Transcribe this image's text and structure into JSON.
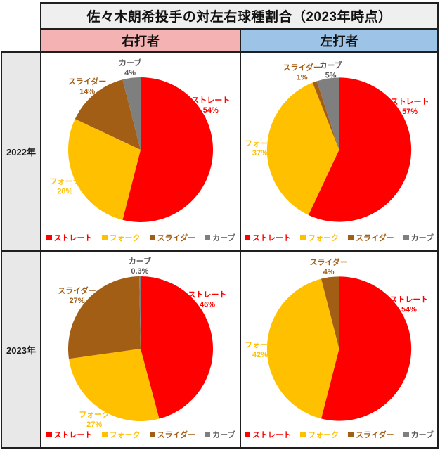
{
  "title": "佐々木朗希投手の対左右球種割合（2023年時点）",
  "col_headers": {
    "right": "右打者",
    "left": "左打者"
  },
  "row_headers": {
    "r2022": "2022年",
    "r2023": "2023年"
  },
  "colors": {
    "straight": "#ff0000",
    "fork": "#ffc000",
    "slider": "#a35e15",
    "curve": "#7f7f7f",
    "curve_label_text": "#595959",
    "header_right_bg": "#f4b2b2",
    "header_left_bg": "#9dc3e6",
    "title_bg": "#f0efef",
    "row_label_bg": "#e9e8e8",
    "grid_border": "#1f1f1f"
  },
  "chart_data": [
    {
      "id": "2022-right",
      "type": "pie",
      "title": "2022年 右打者",
      "categories": [
        "ストレート",
        "フォーク",
        "スライダー",
        "カーブ"
      ],
      "values": [
        54,
        28,
        14,
        4
      ],
      "value_labels": [
        "54%",
        "28%",
        "14%",
        "4%"
      ],
      "colors": [
        "#ff0000",
        "#ffc000",
        "#a35e15",
        "#7f7f7f"
      ],
      "label_colors": [
        "#ff0000",
        "#ffc000",
        "#a35e15",
        "#595959"
      ],
      "legend": [
        "ストレート",
        "フォーク",
        "スライダー",
        "カーブ"
      ],
      "legend_position": "bottom"
    },
    {
      "id": "2022-left",
      "type": "pie",
      "title": "2022年 左打者",
      "categories": [
        "ストレート",
        "フォーク",
        "スライダー",
        "カーブ"
      ],
      "values": [
        57,
        37,
        1,
        5
      ],
      "value_labels": [
        "57%",
        "37%",
        "1%",
        "5%"
      ],
      "colors": [
        "#ff0000",
        "#ffc000",
        "#a35e15",
        "#7f7f7f"
      ],
      "label_colors": [
        "#ff0000",
        "#ffc000",
        "#a35e15",
        "#595959"
      ],
      "legend": [
        "ストレート",
        "フォーク",
        "スライダー",
        "カーブ"
      ],
      "legend_position": "bottom"
    },
    {
      "id": "2023-right",
      "type": "pie",
      "title": "2023年 右打者",
      "categories": [
        "ストレート",
        "フォーク",
        "スライダー",
        "カーブ"
      ],
      "values": [
        46,
        27,
        27,
        0.3
      ],
      "value_labels": [
        "46%",
        "27%",
        "27%",
        "0.3%"
      ],
      "colors": [
        "#ff0000",
        "#ffc000",
        "#a35e15",
        "#7f7f7f"
      ],
      "label_colors": [
        "#ff0000",
        "#ffc000",
        "#a35e15",
        "#595959"
      ],
      "legend": [
        "ストレート",
        "フォーク",
        "スライダー",
        "カーブ"
      ],
      "legend_position": "bottom"
    },
    {
      "id": "2023-left",
      "type": "pie",
      "title": "2023年 左打者",
      "categories": [
        "ストレート",
        "フォーク",
        "スライダー",
        "カーブ"
      ],
      "values": [
        54,
        42,
        4,
        0
      ],
      "value_labels": [
        "54%",
        "42%",
        "4%",
        null
      ],
      "colors": [
        "#ff0000",
        "#ffc000",
        "#a35e15",
        "#7f7f7f"
      ],
      "label_colors": [
        "#ff0000",
        "#ffc000",
        "#a35e15",
        "#595959"
      ],
      "legend": [
        "ストレート",
        "フォーク",
        "スライダー",
        "カーブ"
      ],
      "legend_position": "bottom"
    }
  ]
}
